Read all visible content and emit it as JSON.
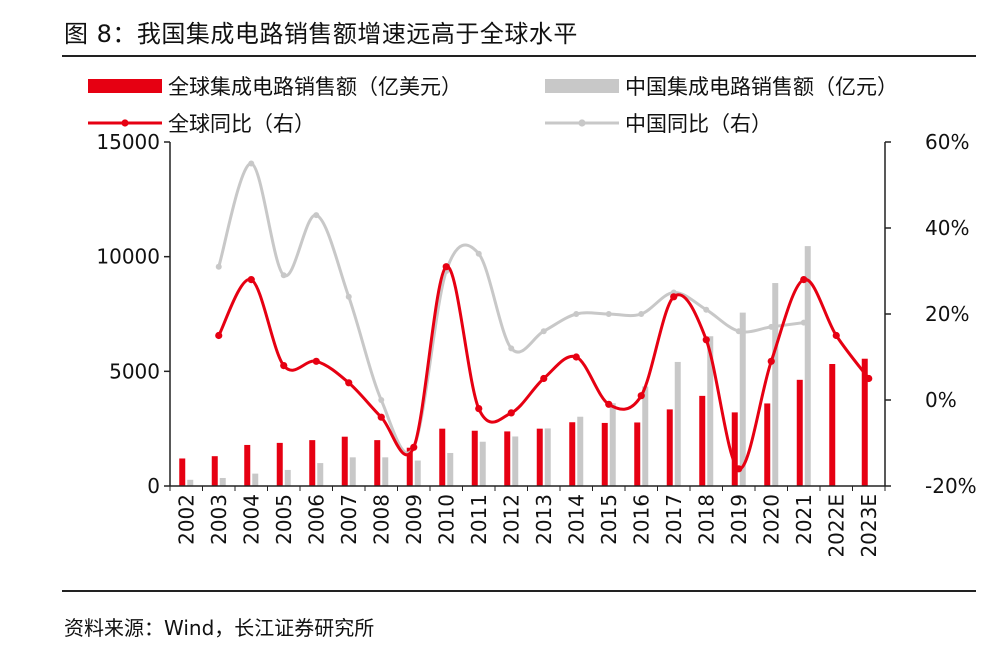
{
  "figure": {
    "title": "图 8：我国集成电路销售额增速远高于全球水平",
    "source": "资料来源：Wind，长江证券研究所"
  },
  "chart_data": {
    "type": "bar",
    "categories": [
      "2002",
      "2003",
      "2004",
      "2005",
      "2006",
      "2007",
      "2008",
      "2009",
      "2010",
      "2011",
      "2012",
      "2013",
      "2014",
      "2015",
      "2016",
      "2017",
      "2018",
      "2019",
      "2020",
      "2021",
      "2022E",
      "2023E"
    ],
    "series": [
      {
        "name": "全球集成电路销售额（亿美元）",
        "type": "bar",
        "axis": "left",
        "color": "#e60012",
        "values": [
          1200,
          1300,
          1790,
          1880,
          2000,
          2150,
          2000,
          1670,
          2500,
          2410,
          2380,
          2500,
          2780,
          2750,
          2770,
          3340,
          3930,
          3210,
          3600,
          4630,
          5320,
          5550
        ]
      },
      {
        "name": "中国集成电路销售额（亿元）",
        "type": "bar",
        "axis": "left",
        "color": "#c8c8c8",
        "values": [
          270,
          350,
          540,
          700,
          1000,
          1250,
          1250,
          1110,
          1440,
          1930,
          2160,
          2510,
          3020,
          3610,
          4340,
          5410,
          6530,
          7560,
          8850,
          10460,
          null,
          null
        ]
      },
      {
        "name": "全球同比（右）",
        "type": "line",
        "axis": "right",
        "color": "#e60012",
        "values": [
          null,
          0.15,
          0.28,
          0.08,
          0.09,
          0.04,
          -0.04,
          -0.11,
          0.31,
          -0.02,
          -0.03,
          0.05,
          0.1,
          -0.01,
          0.01,
          0.24,
          0.14,
          -0.16,
          0.09,
          0.28,
          0.15,
          0.05
        ]
      },
      {
        "name": "中国同比（右）",
        "type": "line",
        "axis": "right",
        "color": "#c8c8c8",
        "values": [
          null,
          0.31,
          0.55,
          0.29,
          0.43,
          0.24,
          0.0,
          -0.11,
          0.3,
          0.34,
          0.12,
          0.16,
          0.2,
          0.2,
          0.2,
          0.25,
          0.21,
          0.16,
          0.17,
          0.18,
          null,
          null
        ]
      }
    ],
    "y_left": {
      "min": 0,
      "max": 15000,
      "ticks": [
        "0",
        "5000",
        "10000",
        "15000"
      ]
    },
    "y_right": {
      "min": -0.2,
      "max": 0.6,
      "ticks": [
        "-20%",
        "0%",
        "20%",
        "40%",
        "60%"
      ]
    },
    "legend_position": "top",
    "grid": false
  }
}
